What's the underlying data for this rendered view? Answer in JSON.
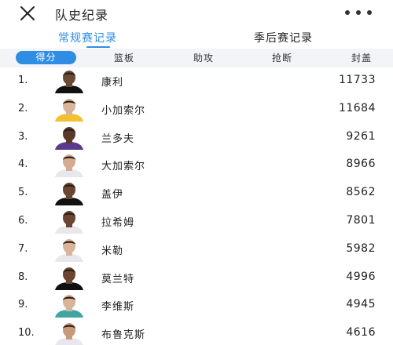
{
  "header": {
    "title": "队史纪录"
  },
  "tabs": [
    {
      "label": "常规赛记录",
      "active": true
    },
    {
      "label": "季后赛记录",
      "active": false
    }
  ],
  "subtabs": [
    {
      "label": "得分",
      "active": true
    },
    {
      "label": "篮板",
      "active": false
    },
    {
      "label": "助攻",
      "active": false
    },
    {
      "label": "抢断",
      "active": false
    },
    {
      "label": "封盖",
      "active": false
    }
  ],
  "records": [
    {
      "rank": "1.",
      "name": "康利",
      "value": "11733",
      "jersey": "#111111",
      "skin": "#6b4a35"
    },
    {
      "rank": "2.",
      "name": "小加索尔",
      "value": "11684",
      "jersey": "#f2c12e",
      "skin": "#d9b49a"
    },
    {
      "rank": "3.",
      "name": "兰多夫",
      "value": "9261",
      "jersey": "#5b3a8e",
      "skin": "#5a3b2a"
    },
    {
      "rank": "4.",
      "name": "大加索尔",
      "value": "8966",
      "jersey": "#e8e8ec",
      "skin": "#d7ab92"
    },
    {
      "rank": "5.",
      "name": "盖伊",
      "value": "8562",
      "jersey": "#111111",
      "skin": "#6a4632"
    },
    {
      "rank": "6.",
      "name": "拉希姆",
      "value": "7801",
      "jersey": "#e8e8ec",
      "skin": "#6a4632"
    },
    {
      "rank": "7.",
      "name": "米勒",
      "value": "5982",
      "jersey": "#e8e8ec",
      "skin": "#d9b49a"
    },
    {
      "rank": "8.",
      "name": "莫兰特",
      "value": "4996",
      "jersey": "#111111",
      "skin": "#6a4632"
    },
    {
      "rank": "9.",
      "name": "李维斯",
      "value": "4945",
      "jersey": "#3fa6a0",
      "skin": "#d9b49a"
    },
    {
      "rank": "10.",
      "name": "布鲁克斯",
      "value": "4616",
      "jersey": "#e8e8ec",
      "skin": "#c99a7a"
    }
  ],
  "colors": {
    "accent": "#2f8de4",
    "subtab_bar": "#f2f4f7"
  }
}
